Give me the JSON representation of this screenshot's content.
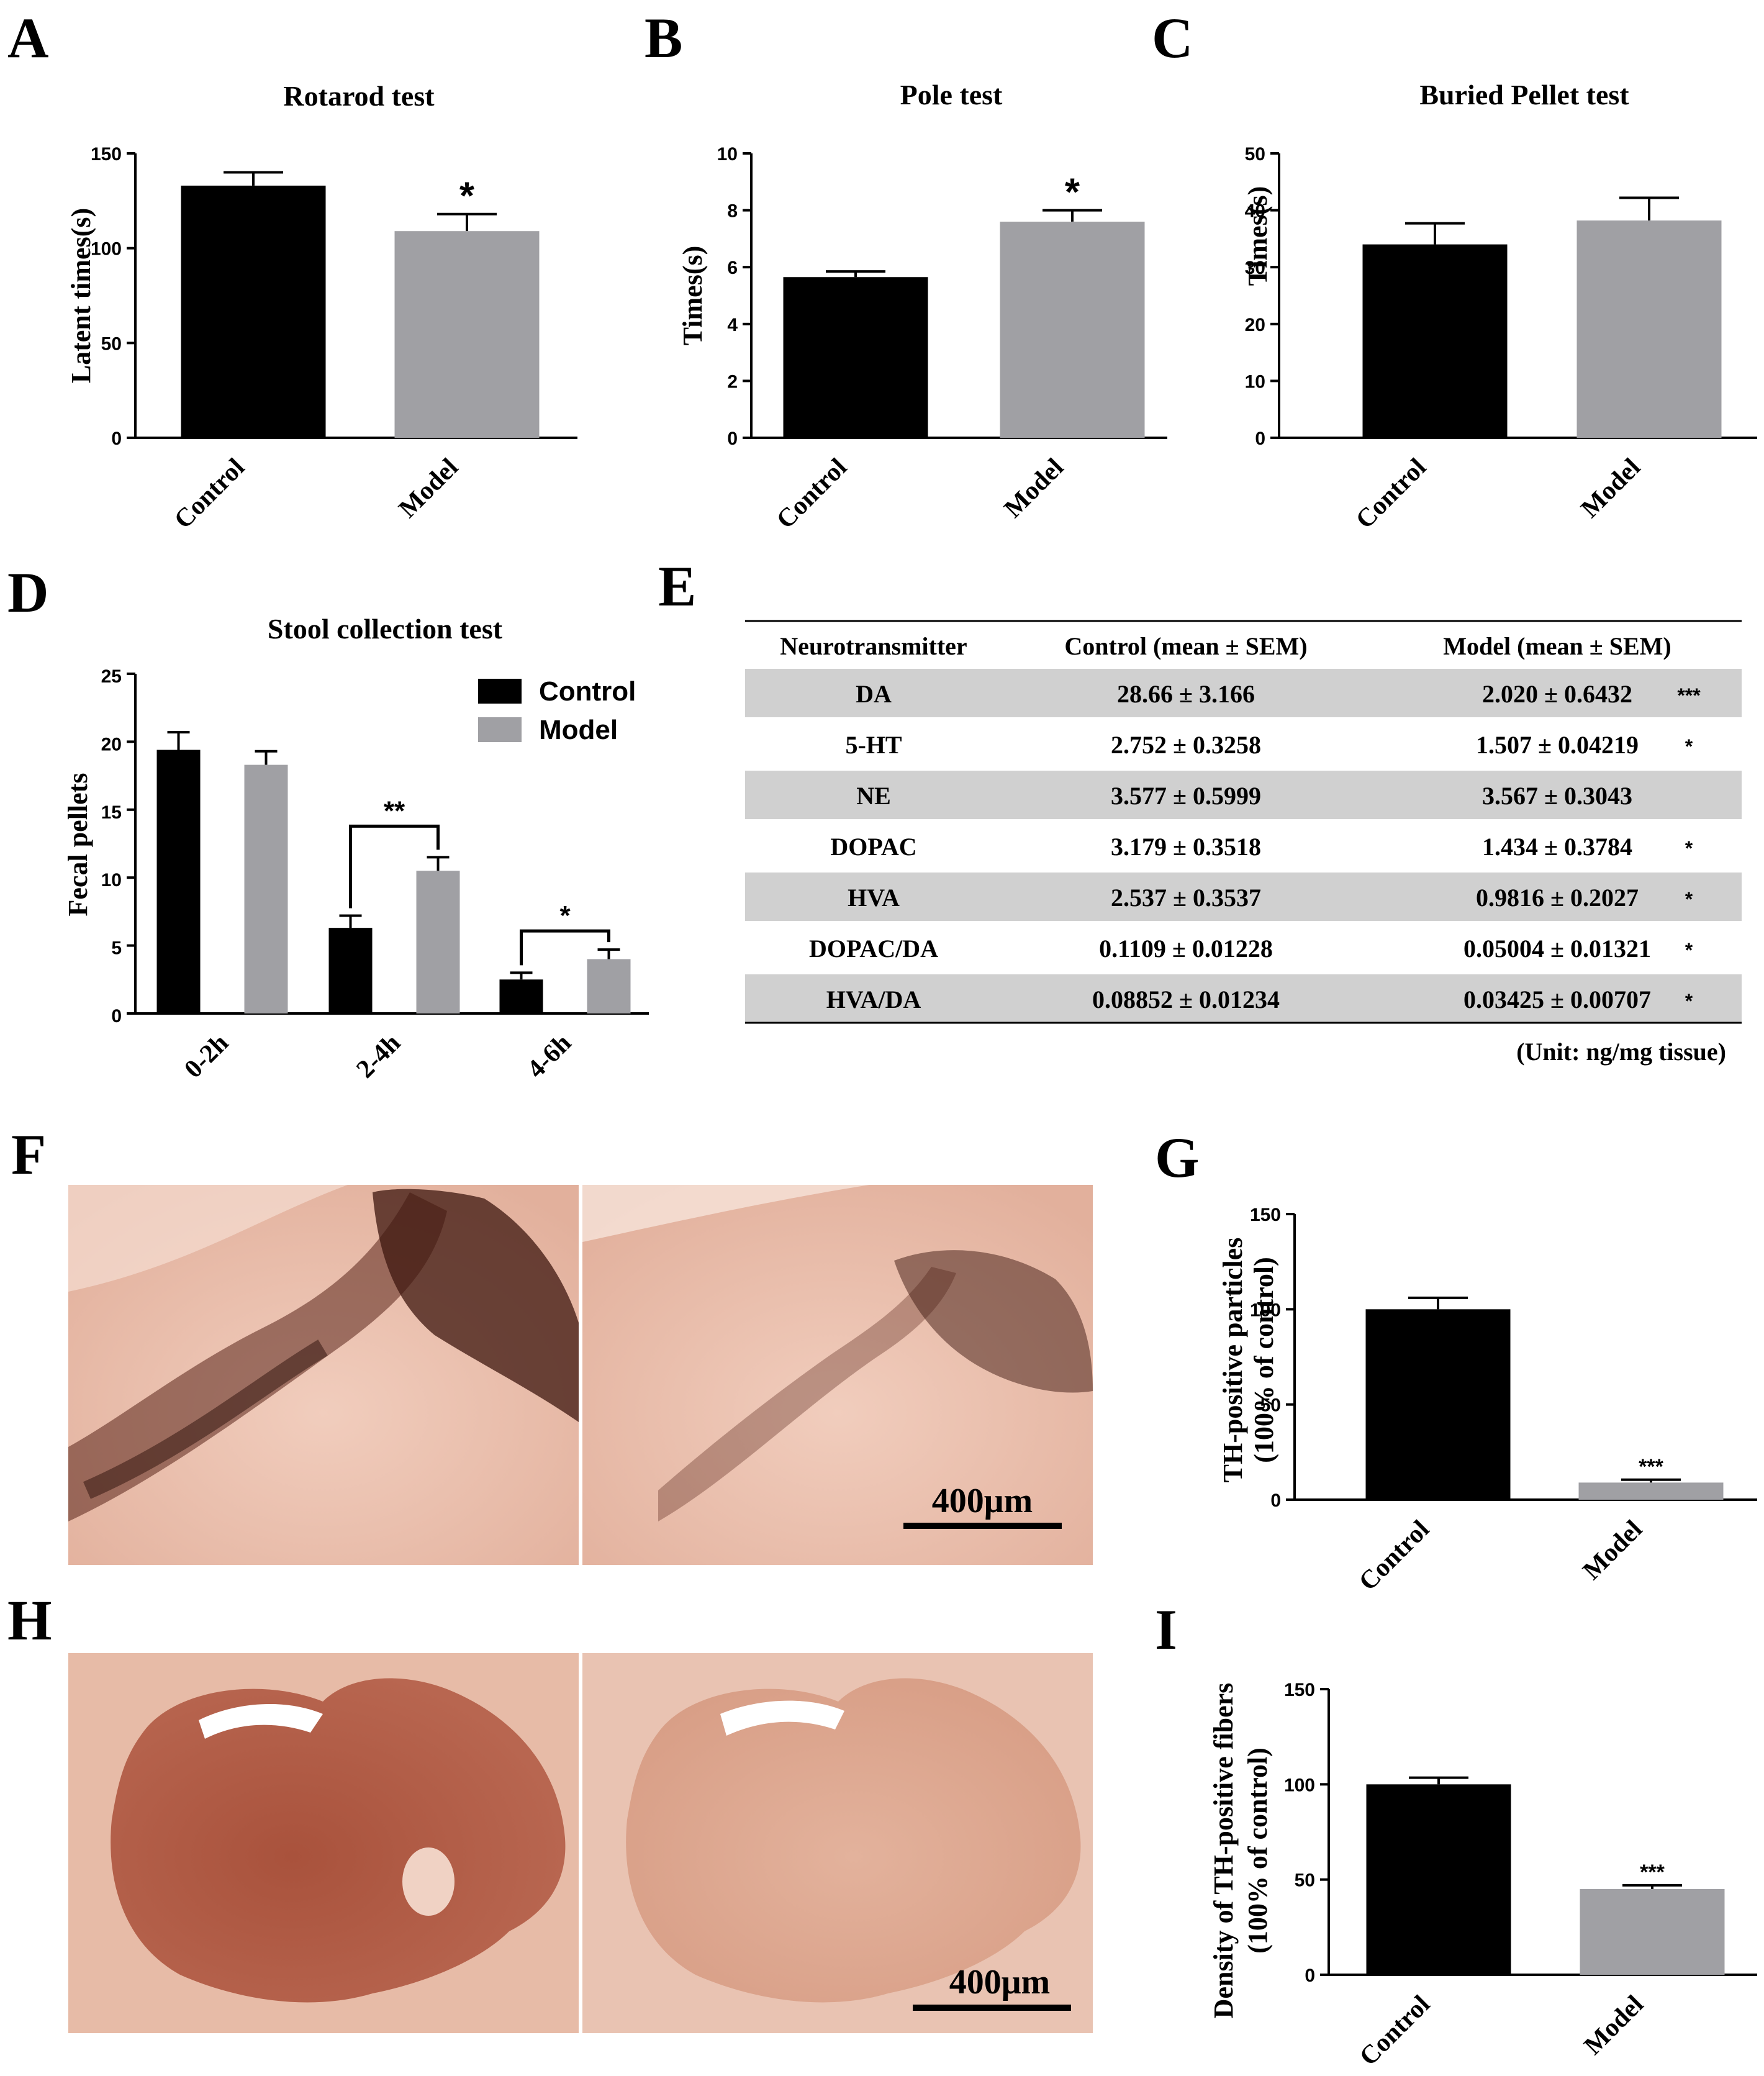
{
  "colors": {
    "control": "#000000",
    "model": "#a0a0a4",
    "table_stripe": "#d0d0d0",
    "tissue": "#e6b8a6",
    "stain": "#6a2b1e"
  },
  "panels": {
    "A": "A",
    "B": "B",
    "C": "C",
    "D": "D",
    "E": "E",
    "F": "F",
    "G": "G",
    "H": "H",
    "I": "I"
  },
  "chart_data": [
    {
      "id": "A",
      "type": "bar",
      "title": "Rotarod test",
      "ylabel": "Latent times(s)",
      "categories": [
        "Control",
        "Model"
      ],
      "values": [
        133,
        109
      ],
      "errors": [
        7,
        9
      ],
      "ylim": [
        0,
        150
      ],
      "yticks": [
        "0",
        "50",
        "100",
        "150"
      ],
      "significance": [
        "",
        "*"
      ]
    },
    {
      "id": "B",
      "type": "bar",
      "title": "Pole test",
      "ylabel": "Times(s)",
      "categories": [
        "Control",
        "Model"
      ],
      "values": [
        5.65,
        7.6
      ],
      "errors": [
        0.2,
        0.4
      ],
      "ylim": [
        0,
        10
      ],
      "yticks": [
        "0",
        "2",
        "4",
        "6",
        "8",
        "10"
      ],
      "significance": [
        "",
        "*"
      ]
    },
    {
      "id": "C",
      "type": "bar",
      "title": "Buried Pellet test",
      "ylabel": "Times(s)",
      "categories": [
        "Control",
        "Model"
      ],
      "values": [
        34,
        38.2
      ],
      "errors": [
        3.7,
        4
      ],
      "ylim": [
        0,
        50
      ],
      "yticks": [
        "0",
        "10",
        "20",
        "30",
        "40",
        "50"
      ],
      "significance": [
        "",
        ""
      ]
    },
    {
      "id": "D",
      "type": "bar",
      "title": "Stool collection test",
      "ylabel": "Fecal pellets",
      "categories": [
        "0-2h",
        "2-4h",
        "4-6h"
      ],
      "series": [
        {
          "name": "Control",
          "values": [
            19.4,
            6.3,
            2.5
          ],
          "errors": [
            1.3,
            0.9,
            0.5
          ]
        },
        {
          "name": "Model",
          "values": [
            18.3,
            10.5,
            4.0
          ],
          "errors": [
            1.0,
            1.0,
            0.7
          ]
        }
      ],
      "ylim": [
        0,
        25
      ],
      "yticks": [
        "0",
        "5",
        "10",
        "15",
        "20",
        "25"
      ],
      "brackets": [
        {
          "category": "2-4h",
          "label": "**"
        },
        {
          "category": "4-6h",
          "label": "*"
        }
      ]
    },
    {
      "id": "E",
      "type": "table",
      "headers": [
        "Neurotransmitter",
        "Control (mean ± SEM)",
        "Model (mean ± SEM)"
      ],
      "rows": [
        [
          "DA",
          "28.66 ± 3.166",
          "2.020 ± 0.6432",
          "***"
        ],
        [
          "5-HT",
          "2.752 ± 0.3258",
          "1.507 ± 0.04219",
          "*"
        ],
        [
          "NE",
          "3.577 ± 0.5999",
          "3.567 ± 0.3043",
          ""
        ],
        [
          "DOPAC",
          "3.179 ± 0.3518",
          "1.434 ± 0.3784",
          "*"
        ],
        [
          "HVA",
          "2.537 ± 0.3537",
          "0.9816 ± 0.2027",
          "*"
        ],
        [
          "DOPAC/DA",
          "0.1109 ± 0.01228",
          "0.05004 ± 0.01321",
          "*"
        ],
        [
          "HVA/DA",
          "0.08852 ± 0.01234",
          "0.03425 ± 0.00707",
          "*"
        ]
      ],
      "note": "(Unit: ng/mg tissue)"
    },
    {
      "id": "G",
      "type": "bar",
      "ylabel_line1": "TH-positive particles",
      "ylabel_line2": "(100% of control)",
      "categories": [
        "Control",
        "Model"
      ],
      "values": [
        100,
        9
      ],
      "errors": [
        6,
        1.5
      ],
      "ylim": [
        0,
        150
      ],
      "yticks": [
        "0",
        "50",
        "100",
        "150"
      ],
      "significance": [
        "",
        "***"
      ]
    },
    {
      "id": "I",
      "type": "bar",
      "ylabel_line1": "Density of TH-positive fibers",
      "ylabel_line2": "(100% of control)",
      "categories": [
        "Control",
        "Model"
      ],
      "values": [
        100,
        45
      ],
      "errors": [
        3.5,
        2
      ],
      "ylim": [
        0,
        150
      ],
      "yticks": [
        "0",
        "50",
        "100",
        "150"
      ],
      "significance": [
        "",
        "***"
      ]
    }
  ],
  "micrographs": {
    "F_scale": "400μm",
    "H_scale": "400μm"
  }
}
